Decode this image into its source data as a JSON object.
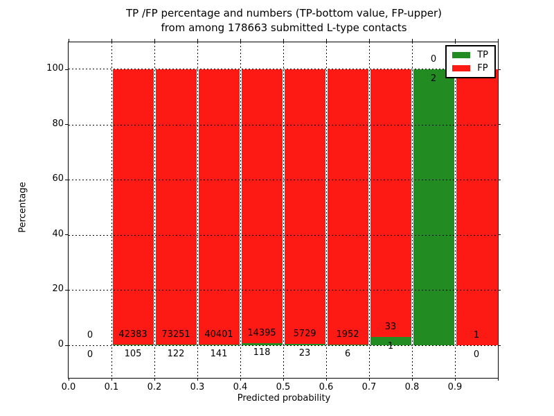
{
  "chart_data": {
    "type": "bar",
    "stacked": true,
    "title_line1": "TP /FP percentage and numbers (TP-bottom value, FP-upper)",
    "title_line2": "from among 178663 submitted L-type contacts",
    "xlabel": "Predicted probability",
    "ylabel": "Percentage",
    "total_submitted": 178663,
    "x_tick_labels": [
      "0.0",
      "0.1",
      "0.2",
      "0.3",
      "0.4",
      "0.5",
      "0.6",
      "0.7",
      "0.8",
      "0.9"
    ],
    "y_tick_labels": [
      "0",
      "20",
      "40",
      "60",
      "80",
      "100"
    ],
    "y_tick_values": [
      0,
      20,
      40,
      60,
      80,
      100
    ],
    "xlim": [
      0.0,
      1.0
    ],
    "ylim": [
      -12,
      110
    ],
    "grid": true,
    "legend_position": "upper right",
    "legend": [
      {
        "label": "TP",
        "color": "#228b22"
      },
      {
        "label": "FP",
        "color": "#fd1a14"
      }
    ],
    "colors": {
      "tp": "#228b22",
      "fp": "#fd1a14"
    },
    "bins": [
      {
        "range": "0.0-0.1",
        "tp": 0,
        "fp": 0
      },
      {
        "range": "0.1-0.2",
        "tp": 105,
        "fp": 42383
      },
      {
        "range": "0.2-0.3",
        "tp": 122,
        "fp": 73251
      },
      {
        "range": "0.3-0.4",
        "tp": 141,
        "fp": 40401
      },
      {
        "range": "0.4-0.5",
        "tp": 118,
        "fp": 14395
      },
      {
        "range": "0.5-0.6",
        "tp": 23,
        "fp": 5729
      },
      {
        "range": "0.6-0.7",
        "tp": 6,
        "fp": 1952
      },
      {
        "range": "0.7-0.8",
        "tp": 1,
        "fp": 33
      },
      {
        "range": "0.8-0.9",
        "tp": 2,
        "fp": 0
      },
      {
        "range": "0.9-1.0",
        "tp": 0,
        "fp": 1
      }
    ]
  }
}
